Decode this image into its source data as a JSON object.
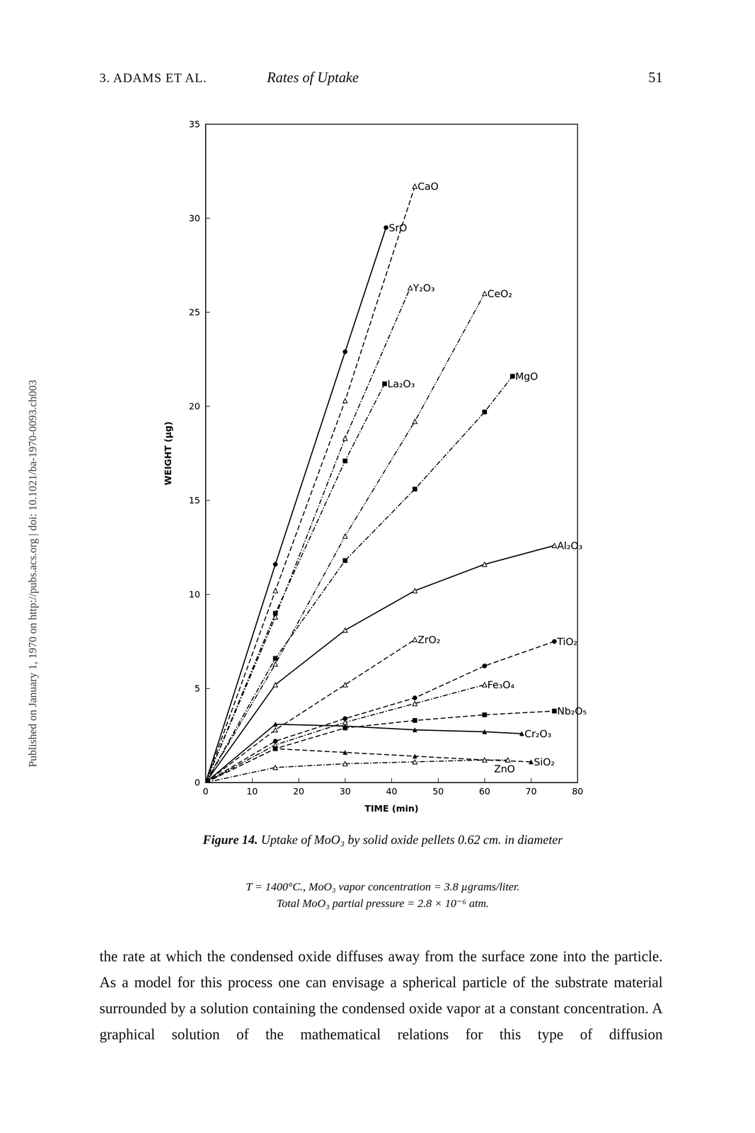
{
  "header": {
    "left": "3. ADAMS ET AL.",
    "title": "Rates of Uptake",
    "page": "51"
  },
  "side_note": "Published on January 1, 1970 on http://pubs.acs.org | doi: 10.1021/ba-1970-0093.ch003",
  "chart_data": {
    "type": "line",
    "xlabel": "TIME (min)",
    "ylabel": "WEIGHT (µg)",
    "xlim": [
      0,
      80
    ],
    "xticks": [
      0,
      10,
      20,
      30,
      40,
      50,
      60,
      70,
      80
    ],
    "ylim": [
      0,
      35
    ],
    "yticks": [
      0,
      5,
      10,
      15,
      20,
      25,
      30,
      35
    ],
    "grid": false,
    "series": [
      {
        "name": "SrO",
        "color": "#000000",
        "marker": "filled_circle",
        "line_style": "solid",
        "x": [
          0,
          15,
          30,
          38.8
        ],
        "values": [
          0,
          11.6,
          22.9,
          29.5
        ]
      },
      {
        "name": "CaO",
        "color": "#000000",
        "marker": "open_triangle",
        "line_style": "dashed",
        "x": [
          0,
          15,
          30,
          45
        ],
        "values": [
          0,
          10.2,
          20.3,
          31.7
        ]
      },
      {
        "name": "Y₂O₃",
        "color": "#000000",
        "marker": "open_triangle",
        "line_style": "dashdot",
        "x": [
          0,
          15,
          30,
          44
        ],
        "values": [
          0,
          8.8,
          18.3,
          26.3
        ]
      },
      {
        "name": "La₂O₃",
        "color": "#000000",
        "marker": "filled_square",
        "line_style": "dashdot",
        "x": [
          0,
          15,
          30,
          38.5
        ],
        "values": [
          0,
          9.0,
          17.1,
          21.2
        ]
      },
      {
        "name": "CeO₂",
        "color": "#000000",
        "marker": "open_triangle",
        "line_style": "dashdotdot",
        "x": [
          0,
          15,
          30,
          45,
          60
        ],
        "values": [
          0,
          6.3,
          13.1,
          19.2,
          26.0
        ]
      },
      {
        "name": "MgO",
        "color": "#000000",
        "marker": "filled_square",
        "line_style": "dashdot",
        "x": [
          0,
          15,
          30,
          45,
          60,
          66
        ],
        "values": [
          0,
          6.6,
          11.8,
          15.6,
          19.7,
          21.6
        ]
      },
      {
        "name": "Al₂O₃",
        "color": "#000000",
        "marker": "open_triangle",
        "line_style": "solid",
        "x": [
          0,
          15,
          30,
          45,
          60,
          75
        ],
        "values": [
          0,
          5.2,
          8.1,
          10.2,
          11.6,
          12.6
        ]
      },
      {
        "name": "ZrO₂",
        "color": "#000000",
        "marker": "open_triangle",
        "line_style": "dashed",
        "x": [
          0,
          15,
          30,
          45
        ],
        "values": [
          0,
          2.8,
          5.2,
          7.6
        ]
      },
      {
        "name": "TiO₂",
        "color": "#000000",
        "marker": "filled_circle",
        "line_style": "dashed",
        "x": [
          0,
          15,
          30,
          45,
          60,
          75
        ],
        "values": [
          0,
          2.2,
          3.4,
          4.5,
          6.2,
          7.5
        ]
      },
      {
        "name": "Fe₃O₄",
        "color": "#000000",
        "marker": "open_triangle",
        "line_style": "dashdot",
        "x": [
          0,
          15,
          30,
          45,
          60
        ],
        "values": [
          0,
          2.0,
          3.2,
          4.2,
          5.2
        ]
      },
      {
        "name": "Nb₂O₅",
        "color": "#000000",
        "marker": "filled_square",
        "line_style": "dashed",
        "x": [
          0,
          15,
          30,
          45,
          60,
          75
        ],
        "values": [
          0,
          1.8,
          2.9,
          3.3,
          3.6,
          3.8
        ]
      },
      {
        "name": "Cr₂O₃",
        "color": "#000000",
        "marker": "filled_triangle",
        "line_style": "solid",
        "x": [
          0,
          15,
          30,
          45,
          60,
          68
        ],
        "values": [
          0,
          3.1,
          3.0,
          2.8,
          2.7,
          2.6
        ]
      },
      {
        "name": "SiO₂",
        "color": "#000000",
        "marker": "filled_triangle",
        "line_style": "dashed",
        "x": [
          0,
          15,
          30,
          45,
          60,
          70
        ],
        "values": [
          0,
          1.8,
          1.6,
          1.4,
          1.2,
          1.1
        ]
      },
      {
        "name": "ZnO",
        "color": "#000000",
        "marker": "open_triangle",
        "line_style": "dashdot",
        "x": [
          0,
          15,
          30,
          45,
          60,
          65
        ],
        "values": [
          0,
          0.8,
          1.0,
          1.1,
          1.2,
          1.2
        ]
      }
    ]
  },
  "caption": {
    "label": "Figure 14.",
    "text": "Uptake of MoO₃ by solid oxide pellets 0.62 cm. in diameter",
    "conditions": [
      "T = 1400°C., MoO₃ vapor concentration = 3.8 µgrams/liter.",
      "Total MoO₃ partial pressure = 2.8 × 10⁻⁶ atm."
    ]
  },
  "body": "the rate at which the condensed oxide diffuses away from the surface zone into the particle. As a model for this process one can envisage a spherical particle of the substrate material surrounded by a solution containing the condensed oxide vapor at a constant concentration. A graphical solution of the mathematical relations for this type of diffusion"
}
